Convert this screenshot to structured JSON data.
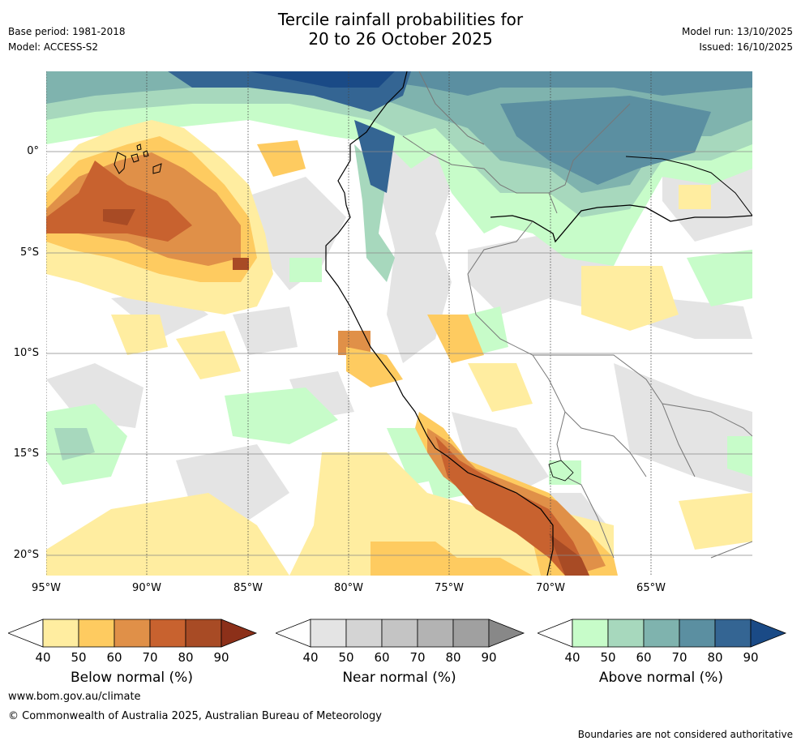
{
  "header": {
    "title_line1": "Tercile rainfall probabilities for",
    "title_line2": "20 to 26 October 2025",
    "base_period": "Base period: 1981-2018",
    "model": "Model: ACCESS-S2",
    "model_run": "Model run: 13/10/2025",
    "issued": "Issued: 16/10/2025"
  },
  "map": {
    "longitude_labels": [
      "95°W",
      "90°W",
      "85°W",
      "80°W",
      "75°W",
      "70°W",
      "65°W"
    ],
    "latitude_labels": [
      "0°",
      "5°S",
      "10°S",
      "15°S",
      "20°S"
    ]
  },
  "colorbars": [
    {
      "title": "Below normal (%)",
      "ticks": [
        "40",
        "50",
        "60",
        "70",
        "80",
        "90"
      ],
      "colors": [
        "#ffeda0",
        "#fecb60",
        "#e09048",
        "#c8622f",
        "#a84b25",
        "#8c3019"
      ]
    },
    {
      "title": "Near normal (%)",
      "ticks": [
        "40",
        "50",
        "60",
        "70",
        "80",
        "90"
      ],
      "colors": [
        "#e4e4e4",
        "#d4d4d4",
        "#c4c4c4",
        "#b3b3b3",
        "#a0a0a0",
        "#888888"
      ]
    },
    {
      "title": "Above normal (%)",
      "ticks": [
        "40",
        "50",
        "60",
        "70",
        "80",
        "90"
      ],
      "colors": [
        "#c7fcc9",
        "#a7d8bd",
        "#7fb3ae",
        "#5b8fa1",
        "#346593",
        "#1a4a86"
      ]
    }
  ],
  "footer": {
    "website": "www.bom.gov.au/climate",
    "copyright": "© Commonwealth of Australia 2025, Australian Bureau of Meteorology",
    "disclaimer": "Boundaries are not considered authoritative"
  }
}
